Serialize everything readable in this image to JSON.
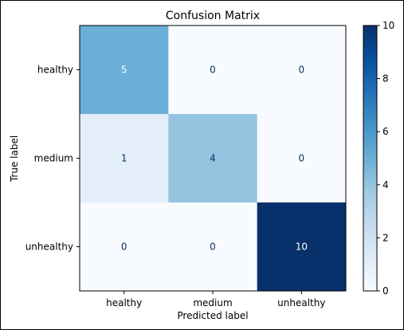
{
  "chart_data": {
    "type": "heatmap",
    "title": "Confusion Matrix",
    "xlabel": "Predicted label",
    "ylabel": "True label",
    "x_categories": [
      "healthy",
      "medium",
      "unhealthy"
    ],
    "y_categories": [
      "healthy",
      "medium",
      "unhealthy"
    ],
    "matrix": [
      [
        5,
        0,
        0
      ],
      [
        1,
        4,
        0
      ],
      [
        0,
        0,
        10
      ]
    ],
    "colormap": "Blues",
    "colorbar": {
      "range": [
        0,
        10
      ],
      "ticks": [
        "0",
        "2",
        "4",
        "6",
        "8",
        "10"
      ],
      "tick_values": [
        0,
        2,
        4,
        6,
        8,
        10
      ]
    }
  }
}
